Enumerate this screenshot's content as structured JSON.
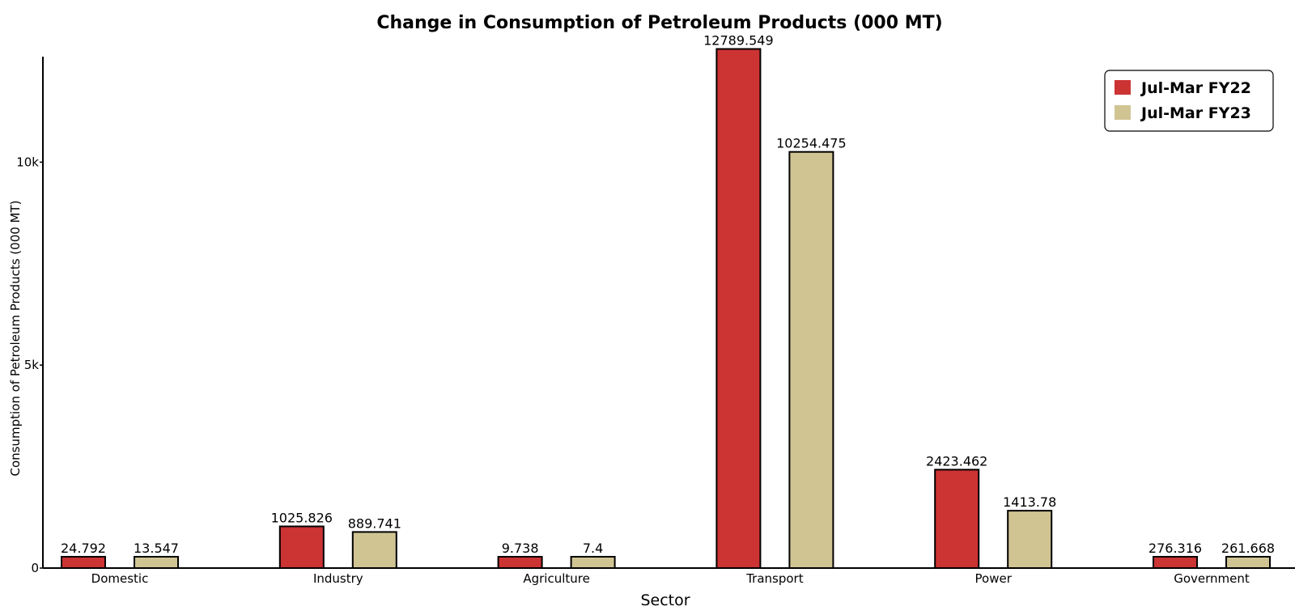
{
  "chart_data": {
    "type": "bar",
    "title": "Change in Consumption of Petroleum Products (000 MT)",
    "xlabel": "Sector",
    "ylabel": "Consumption of Petroleum Products (000 MT)",
    "categories": [
      "Domestic",
      "Industry",
      "Agriculture",
      "Transport",
      "Power",
      "Government"
    ],
    "series": [
      {
        "name": "Jul-Mar FY22",
        "color": "#cc3333",
        "values": [
          24.792,
          1025.826,
          9.738,
          12789.549,
          2423.462,
          276.316
        ],
        "labels": [
          "24.792",
          "1025.826",
          "9.738",
          "12789.549",
          "2423.462",
          "276.316"
        ]
      },
      {
        "name": "Jul-Mar FY23",
        "color": "#d0c493",
        "values": [
          13.547,
          889.741,
          7.4,
          10254.475,
          1413.78,
          261.668
        ],
        "labels": [
          "13.547",
          "889.741",
          "7.4",
          "10254.475",
          "1413.78",
          "261.668"
        ]
      }
    ],
    "yticks": [
      {
        "value": 0,
        "label": "0"
      },
      {
        "value": 5000,
        "label": "5k"
      },
      {
        "value": 10000,
        "label": "10k"
      }
    ],
    "ylim": [
      0,
      12800
    ],
    "grid": false,
    "legend_position": "top-right"
  }
}
